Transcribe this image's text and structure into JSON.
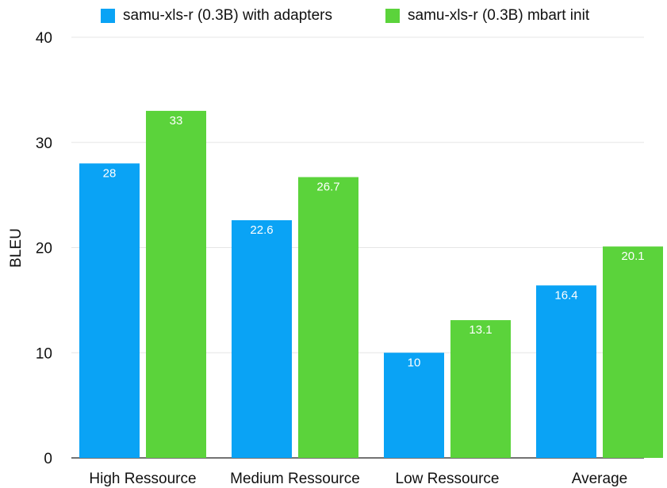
{
  "chart_data": {
    "type": "bar",
    "categories": [
      "High Ressource",
      "Medium Ressource",
      "Low Ressource",
      "Average"
    ],
    "series": [
      {
        "name": "samu-xls-r (0.3B) with adapters",
        "values": [
          28,
          22.6,
          10,
          16.4
        ],
        "labels": [
          "28",
          "22.6",
          "10",
          "16.4"
        ],
        "color": "#0aa3f5"
      },
      {
        "name": "samu-xls-r (0.3B) mbart init",
        "values": [
          33,
          26.7,
          13.1,
          20.1
        ],
        "labels": [
          "33",
          "26.7",
          "13.1",
          "20.1"
        ],
        "color": "#5bd33b"
      }
    ],
    "ylabel": "BLEU",
    "ylim": [
      0,
      40
    ],
    "yticks": [
      0,
      10,
      20,
      30,
      40
    ],
    "grid": true,
    "legend": "top"
  }
}
